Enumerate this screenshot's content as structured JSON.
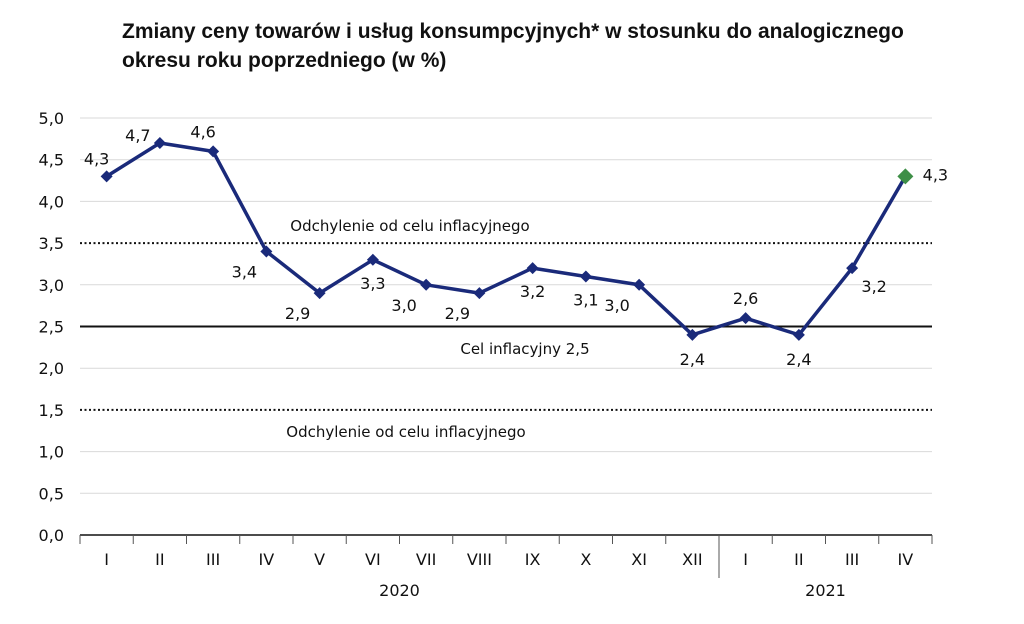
{
  "chart_data": {
    "type": "line",
    "title_line1": "Zmiany ceny towarów i usług konsumpcyjnych* w stosunku do analogicznego",
    "title_line2": "okresu roku poprzedniego (w %)",
    "categories": [
      "I",
      "II",
      "III",
      "IV",
      "V",
      "VI",
      "VII",
      "VIII",
      "IX",
      "X",
      "XI",
      "XII",
      "I",
      "II",
      "III",
      "IV"
    ],
    "year_groups": [
      {
        "label": "2020",
        "from": 0,
        "to": 11
      },
      {
        "label": "2021",
        "from": 12,
        "to": 15
      }
    ],
    "series": [
      {
        "values": [
          4.3,
          4.7,
          4.6,
          3.4,
          2.9,
          3.3,
          3.0,
          2.9,
          3.2,
          3.1,
          3.0,
          2.4,
          2.6,
          2.4,
          3.2,
          4.3
        ]
      }
    ],
    "data_labels": [
      "4,3",
      "4,7",
      "4,6",
      "3,4",
      "2,9",
      "3,3",
      "3,0",
      "2,9",
      "3,2",
      "3,1",
      "3,0",
      "2,4",
      "2,6",
      "2,4",
      "3,2",
      "4,3"
    ],
    "ylim": [
      0,
      5
    ],
    "yticks": [
      0,
      0.5,
      1,
      1.5,
      2,
      2.5,
      3,
      3.5,
      4,
      4.5,
      5
    ],
    "ytick_labels": [
      "0,0",
      "0,5",
      "1,0",
      "1,5",
      "2,0",
      "2,5",
      "3,0",
      "3,5",
      "4,0",
      "4,5",
      "5,0"
    ],
    "grid": true,
    "reference_lines": [
      {
        "value": 3.5,
        "style": "dotted",
        "label": "Odchylenie od celu inflacyjnego"
      },
      {
        "value": 2.5,
        "style": "solid",
        "label": "Cel inflacyjny 2,5"
      },
      {
        "value": 1.5,
        "style": "dotted",
        "label": "Odchylenie od celu inflacyjnego"
      }
    ],
    "colors": {
      "line": "#1a2a7a",
      "marker": "#1a2a7a",
      "last_marker": "#3e8f47",
      "grid": "#d9d9d9",
      "text": "#111111"
    }
  }
}
